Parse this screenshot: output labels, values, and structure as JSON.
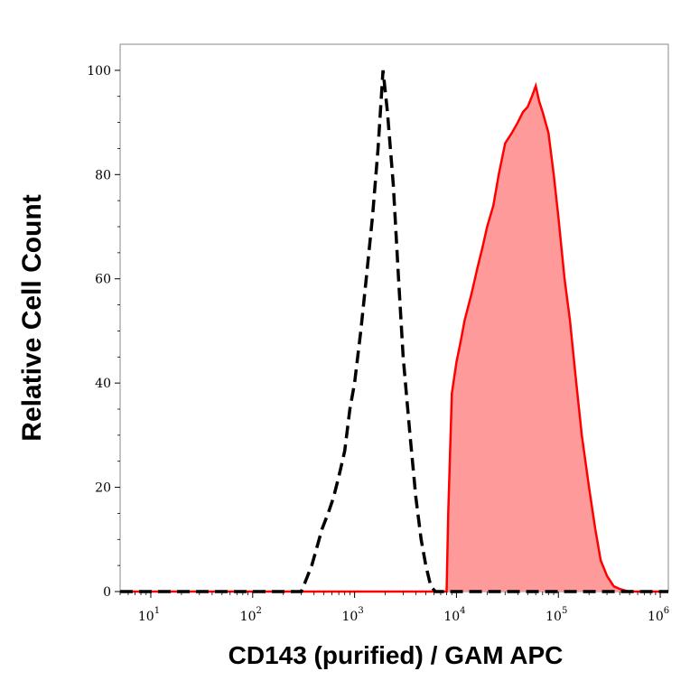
{
  "chart_data": {
    "type": "area",
    "xlabel": "CD143 (purified) / GAM APC",
    "ylabel": "Relative Cell Count",
    "x_scale": "log",
    "xlim": [
      5,
      1200000
    ],
    "ylim": [
      0,
      105
    ],
    "grid": false,
    "legend": "none",
    "x_ticks": [
      {
        "value": 10,
        "base": "10",
        "exp": "1"
      },
      {
        "value": 100,
        "base": "10",
        "exp": "2"
      },
      {
        "value": 1000,
        "base": "10",
        "exp": "3"
      },
      {
        "value": 10000,
        "base": "10",
        "exp": "4"
      },
      {
        "value": 100000,
        "base": "10",
        "exp": "5"
      },
      {
        "value": 1000000,
        "base": "10",
        "exp": "6"
      }
    ],
    "y_ticks": [
      {
        "value": 0,
        "label": "0"
      },
      {
        "value": 20,
        "label": "20"
      },
      {
        "value": 40,
        "label": "40"
      },
      {
        "value": 60,
        "label": "60"
      },
      {
        "value": 80,
        "label": "80"
      },
      {
        "value": 100,
        "label": "100"
      }
    ],
    "series": [
      {
        "style": "dashed",
        "color": "#000000",
        "x": [
          5,
          300,
          330,
          380,
          420,
          480,
          550,
          620,
          700,
          800,
          900,
          1000,
          1150,
          1300,
          1500,
          1700,
          1900,
          2100,
          2400,
          2700,
          3000,
          3500,
          4000,
          4500,
          5000,
          5600,
          6200,
          1200000
        ],
        "y": [
          0,
          0,
          2,
          5,
          8,
          12,
          15,
          18,
          22,
          27,
          35,
          40,
          50,
          60,
          72,
          85,
          100,
          92,
          78,
          60,
          45,
          30,
          18,
          10,
          5,
          1,
          0,
          0
        ]
      },
      {
        "style": "filled",
        "color": "#ff0000",
        "fill": "#ff9a9a",
        "x": [
          5,
          8000,
          8300,
          9000,
          10000,
          11000,
          12000,
          14000,
          16000,
          18000,
          20000,
          23000,
          26000,
          30000,
          35000,
          40000,
          45000,
          50000,
          55000,
          60000,
          65000,
          70000,
          80000,
          90000,
          100000,
          115000,
          130000,
          150000,
          170000,
          200000,
          230000,
          260000,
          300000,
          350000,
          400000,
          450000,
          500000,
          1200000
        ],
        "y": [
          0,
          0,
          15,
          38,
          44,
          48,
          52,
          57,
          62,
          66,
          70,
          74,
          80,
          86,
          88,
          90,
          92,
          93,
          95,
          97,
          94,
          92,
          88,
          80,
          72,
          60,
          52,
          40,
          30,
          20,
          12,
          6,
          3,
          1,
          0.5,
          0.2,
          0,
          0
        ]
      }
    ]
  }
}
